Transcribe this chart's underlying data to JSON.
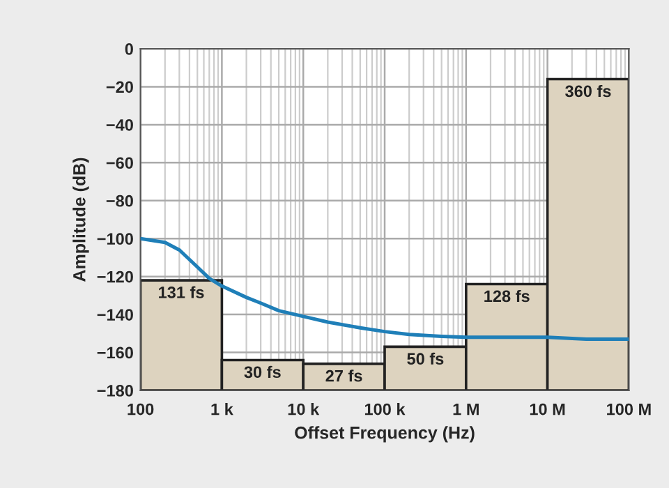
{
  "chart_data": {
    "type": "bar",
    "xlabel": "Offset Frequency (Hz)",
    "ylabel": "Amplitude (dB)",
    "log": "x",
    "grid": true,
    "xlim": [
      100,
      100000000
    ],
    "ylim": [
      -180,
      0
    ],
    "xticks": [
      100,
      {
        "value": 1000,
        "label": "1 k"
      },
      {
        "value": 10000,
        "label": "10 k"
      },
      {
        "value": 100000,
        "label": "100 k"
      },
      {
        "value": 1000000,
        "label": "1 M"
      },
      {
        "value": 10000000,
        "label": "10 M"
      },
      {
        "value": 100000000,
        "label": "100 M"
      }
    ],
    "yticks": [
      {
        "value": 0,
        "label": "0"
      },
      {
        "value": -20,
        "label": "−20"
      },
      {
        "value": -40,
        "label": "−40"
      },
      {
        "value": -60,
        "label": "−60"
      },
      {
        "value": -80,
        "label": "−80"
      },
      {
        "value": -100,
        "label": "−100"
      },
      {
        "value": -120,
        "label": "−120"
      },
      {
        "value": -140,
        "label": "−140"
      },
      {
        "value": -160,
        "label": "−160"
      },
      {
        "value": -180,
        "label": "−180"
      }
    ],
    "series": [
      {
        "color": "#ddd3bf",
        "x": [
          316.2,
          3162,
          31623,
          316228,
          3162278,
          31622777
        ],
        "base": [
          -180,
          -180,
          -180,
          -180,
          -180,
          -180
        ],
        "values": [
          58,
          16,
          14,
          23,
          56,
          164
        ]
      },
      {
        "type": "line",
        "color": "#1f7fb8",
        "line_style": "solid",
        "x": [
          100,
          200,
          300,
          500,
          700,
          1000,
          2000,
          3000,
          5000,
          10000,
          20000,
          50000,
          100000,
          200000,
          500000,
          1000000,
          3000000,
          10000000,
          30000000,
          100000000
        ],
        "values": [
          -100,
          -102,
          -106,
          -115,
          -121,
          -125,
          -131,
          -134,
          -138,
          -141,
          -144,
          -147,
          -149,
          -150.5,
          -151.5,
          -152,
          -152,
          -152,
          -153,
          -153
        ]
      }
    ],
    "annotations": [
      {
        "text": "131 fs",
        "x": 316.2,
        "y": -122
      },
      {
        "text": "30 fs",
        "x": 3162,
        "y": -164
      },
      {
        "text": "27 fs",
        "x": 31623,
        "y": -166
      },
      {
        "text": "50 fs",
        "x": 316228,
        "y": -157
      },
      {
        "text": "128 fs",
        "x": 3162278,
        "y": -124
      },
      {
        "text": "360 fs",
        "x": 31622777,
        "y": -16
      }
    ]
  }
}
